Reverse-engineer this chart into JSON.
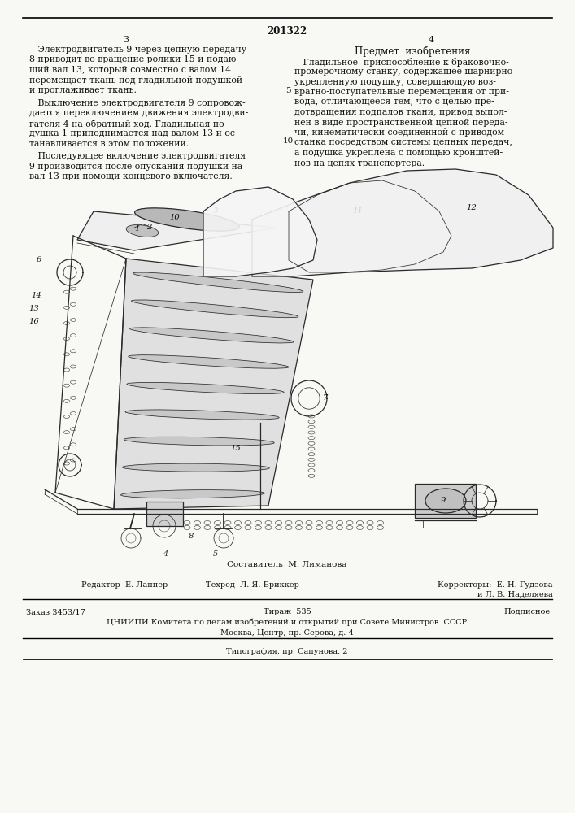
{
  "page_number": "201322",
  "col_left": "3",
  "col_right": "4",
  "bg_color": "#f8f8f5",
  "text_color": "#111111",
  "left_para1": [
    "   Электродвигатель 9 через цепную передачу",
    "8 приводит во вращение ролики 15 и подаю-",
    "щий вал 13, который совместно с валом 14",
    "перемещает ткань под гладильной подушкой",
    "и проглаживает ткань."
  ],
  "left_para2": [
    "   Выключение электродвигателя 9 сопровож-",
    "дается переключением движения электродви-",
    "гателя 4 на обратный ход. Гладильная по-",
    "душка 1 приподнимается над валом 13 и ос-",
    "танавливается в этом положении."
  ],
  "left_para3": [
    "   Последующее включение электродвигателя",
    "9 производится после опускания подушки на",
    "вал 13 при помощи концевого включателя."
  ],
  "right_title": "Предмет  изобретения",
  "right_para1": [
    "   Гладильное  приспособление к браковочно-",
    "промерочному станку, содержащее шарнирно",
    "укрепленную подушку, совершающую воз-",
    "вратно-поступательные перемещения от при-",
    "вода, отличающееся тем, что с целью пре-",
    "дотвращения подпалов ткани, привод выпол-",
    "нен в виде пространственной цепной переда-",
    "чи, кинематически соединенной с приводом",
    "станка посредством системы цепных передач,",
    "а подушка укреплена с помощью кронштей-",
    "нов на цепях транспортера."
  ],
  "footer_sostavitel": "Составитель  М. Лиманова",
  "footer_editor": "Редактор  Е. Лаппер",
  "footer_tech": "Техред  Л. Я. Бриккер",
  "footer_correctors": "Корректоры:  Е. Н. Гудзова",
  "footer_correctors2": "и Л. В. Наделяева",
  "footer_order": "Заказ 3453/17",
  "footer_tirazh": "Тираж  535",
  "footer_podpisnoe": "Подписное",
  "footer_cniip": "ЦНИИПИ Комитета по делам изобретений и открытий при Совете Министров  СССР",
  "footer_moscow": "Москва, Центр, пр. Серова, д. 4",
  "footer_tip": "Типография, пр. Сапунова, 2"
}
